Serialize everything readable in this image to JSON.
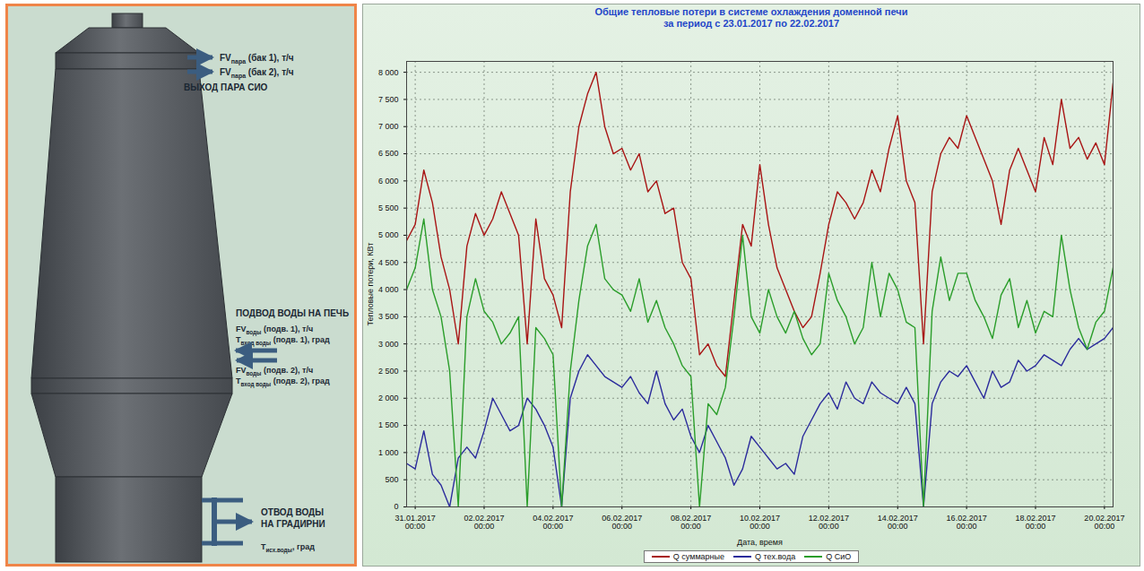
{
  "diagram": {
    "steam_outputs": [
      {
        "symbol": "FV",
        "subscript": "пара",
        "text": " (бак 1), т/ч"
      },
      {
        "symbol": "FV",
        "subscript": "пара",
        "text": " (бак 2), т/ч"
      }
    ],
    "steam_title": "ВЫХОД ПАРА СИО",
    "water_supply_title": "ПОДВОД ВОДЫ НА ПЕЧЬ",
    "water_supply": [
      {
        "symbol": "FV",
        "subscript": "воды",
        "text": " (подв. 1), т/ч"
      },
      {
        "symbol": "T",
        "subscript": "вход воды",
        "text": " (подв. 1), град"
      },
      {
        "symbol": "FV",
        "subscript": "воды",
        "text": " (подв. 2), т/ч"
      },
      {
        "symbol": "T",
        "subscript": "вход воды",
        "text": " (подв. 2), град"
      }
    ],
    "drain_title": [
      "ОТВОД ВОДЫ",
      "НА ГРАДИРНИ"
    ],
    "drain_temp": {
      "symbol": "T",
      "subscript": "исх.воды",
      "text": ", град"
    }
  },
  "chart_data": {
    "type": "line",
    "title": "Общие тепловые потери в системе охлаждения доменной печи",
    "subtitle": "за период с 23.01.2017 по 22.02.2017",
    "xlabel": "Дата, время",
    "ylabel": "Тепловые потери, КВт",
    "grid": true,
    "legend": "bottom",
    "xlim": [
      "2017-01-30T18:00",
      "2017-02-20T06:00"
    ],
    "xticks": [
      {
        "value": "2017-01-31T00:00",
        "label": "31.01.2017\n00:00"
      },
      {
        "value": "2017-02-02T00:00",
        "label": "02.02.2017\n00:00"
      },
      {
        "value": "2017-02-04T00:00",
        "label": "04.02.2017\n00:00"
      },
      {
        "value": "2017-02-06T00:00",
        "label": "06.02.2017\n00:00"
      },
      {
        "value": "2017-02-08T00:00",
        "label": "08.02.2017\n00:00"
      },
      {
        "value": "2017-02-10T00:00",
        "label": "10.02.2017\n00:00"
      },
      {
        "value": "2017-02-12T00:00",
        "label": "12.02.2017\n00:00"
      },
      {
        "value": "2017-02-14T00:00",
        "label": "14.02.2017\n00:00"
      },
      {
        "value": "2017-02-16T00:00",
        "label": "16.02.2017\n00:00"
      },
      {
        "value": "2017-02-18T00:00",
        "label": "18.02.2017\n00:00"
      },
      {
        "value": "2017-02-20T00:00",
        "label": "20.02.2017\n00:00"
      }
    ],
    "ylim": [
      0,
      8200
    ],
    "yticks": [
      0,
      500,
      {
        "value": 1000,
        "label": "1 000"
      },
      {
        "value": 1500,
        "label": "1 500"
      },
      {
        "value": 2000,
        "label": "2 000"
      },
      {
        "value": 2500,
        "label": "2 500"
      },
      {
        "value": 3000,
        "label": "3 000"
      },
      {
        "value": 3500,
        "label": "3 500"
      },
      {
        "value": 4000,
        "label": "4 000"
      },
      {
        "value": 4500,
        "label": "4 500"
      },
      {
        "value": 5000,
        "label": "5 000"
      },
      {
        "value": 5500,
        "label": "5 500"
      },
      {
        "value": 6000,
        "label": "6 000"
      },
      {
        "value": 6500,
        "label": "6 500"
      },
      {
        "value": 7000,
        "label": "7 000"
      },
      {
        "value": 7500,
        "label": "7 500"
      },
      {
        "value": 8000,
        "label": "8 000"
      }
    ],
    "x": [
      "2017-01-30T18:00",
      "2017-01-31T00:00",
      "2017-01-31T06:00",
      "2017-01-31T12:00",
      "2017-01-31T18:00",
      "2017-02-01T00:00",
      "2017-02-01T06:00",
      "2017-02-01T12:00",
      "2017-02-01T18:00",
      "2017-02-02T00:00",
      "2017-02-02T06:00",
      "2017-02-02T12:00",
      "2017-02-02T18:00",
      "2017-02-03T00:00",
      "2017-02-03T06:00",
      "2017-02-03T12:00",
      "2017-02-03T18:00",
      "2017-02-04T00:00",
      "2017-02-04T06:00",
      "2017-02-04T12:00",
      "2017-02-04T18:00",
      "2017-02-05T00:00",
      "2017-02-05T06:00",
      "2017-02-05T12:00",
      "2017-02-05T18:00",
      "2017-02-06T00:00",
      "2017-02-06T06:00",
      "2017-02-06T12:00",
      "2017-02-06T18:00",
      "2017-02-07T00:00",
      "2017-02-07T06:00",
      "2017-02-07T12:00",
      "2017-02-07T18:00",
      "2017-02-08T00:00",
      "2017-02-08T06:00",
      "2017-02-08T12:00",
      "2017-02-08T18:00",
      "2017-02-09T00:00",
      "2017-02-09T06:00",
      "2017-02-09T12:00",
      "2017-02-09T18:00",
      "2017-02-10T00:00",
      "2017-02-10T06:00",
      "2017-02-10T12:00",
      "2017-02-10T18:00",
      "2017-02-11T00:00",
      "2017-02-11T06:00",
      "2017-02-11T12:00",
      "2017-02-11T18:00",
      "2017-02-12T00:00",
      "2017-02-12T06:00",
      "2017-02-12T12:00",
      "2017-02-12T18:00",
      "2017-02-13T00:00",
      "2017-02-13T06:00",
      "2017-02-13T12:00",
      "2017-02-13T18:00",
      "2017-02-14T00:00",
      "2017-02-14T06:00",
      "2017-02-14T12:00",
      "2017-02-14T18:00",
      "2017-02-15T00:00",
      "2017-02-15T06:00",
      "2017-02-15T12:00",
      "2017-02-15T18:00",
      "2017-02-16T00:00",
      "2017-02-16T06:00",
      "2017-02-16T12:00",
      "2017-02-16T18:00",
      "2017-02-17T00:00",
      "2017-02-17T06:00",
      "2017-02-17T12:00",
      "2017-02-17T18:00",
      "2017-02-18T00:00",
      "2017-02-18T06:00",
      "2017-02-18T12:00",
      "2017-02-18T18:00",
      "2017-02-19T00:00",
      "2017-02-19T06:00",
      "2017-02-19T12:00",
      "2017-02-19T18:00",
      "2017-02-20T00:00",
      "2017-02-20T06:00"
    ],
    "series": [
      {
        "name": "Q суммарные",
        "color": "#a81414",
        "values": [
          4900,
          5200,
          6200,
          5600,
          4600,
          4000,
          3000,
          4800,
          5400,
          5000,
          5300,
          5800,
          5400,
          5000,
          3000,
          5300,
          4200,
          3900,
          3300,
          5800,
          7000,
          7600,
          8000,
          7000,
          6500,
          6600,
          6200,
          6500,
          5800,
          6000,
          5400,
          5500,
          4500,
          4200,
          2800,
          3000,
          2600,
          2400,
          3800,
          5200,
          4800,
          6300,
          5200,
          4400,
          4000,
          3600,
          3300,
          3500,
          4300,
          5200,
          5800,
          5600,
          5300,
          5600,
          6200,
          5800,
          6600,
          7200,
          6000,
          5600,
          3000,
          5800,
          6500,
          6800,
          6600,
          7200,
          6800,
          6400,
          6000,
          5200,
          6200,
          6600,
          6200,
          5800,
          6800,
          6300,
          7500,
          6600,
          6800,
          6400,
          6700,
          6300,
          7800
        ]
      },
      {
        "name": "Q тех.вода",
        "color": "#2b2b9c",
        "values": [
          800,
          700,
          1400,
          600,
          400,
          0,
          900,
          1100,
          900,
          1400,
          2000,
          1700,
          1400,
          1500,
          2000,
          1800,
          1500,
          1100,
          0,
          2000,
          2500,
          2800,
          2600,
          2400,
          2300,
          2200,
          2400,
          2100,
          1900,
          2500,
          1900,
          1600,
          1800,
          1300,
          1000,
          1500,
          1200,
          900,
          400,
          700,
          1300,
          1100,
          900,
          700,
          800,
          600,
          1300,
          1600,
          1900,
          2100,
          1800,
          2300,
          2000,
          1900,
          2300,
          2100,
          2000,
          1900,
          2200,
          1900,
          0,
          1900,
          2300,
          2500,
          2400,
          2600,
          2300,
          2000,
          2500,
          2200,
          2300,
          2700,
          2500,
          2600,
          2800,
          2700,
          2600,
          2900,
          3100,
          2900,
          3000,
          3100,
          3300
        ]
      },
      {
        "name": "Q СиО",
        "color": "#2a9d2a",
        "values": [
          4000,
          4400,
          5300,
          4000,
          3500,
          2500,
          0,
          3500,
          4200,
          3600,
          3400,
          3000,
          3200,
          3500,
          0,
          3300,
          3100,
          2800,
          0,
          2500,
          3800,
          4800,
          5200,
          4200,
          4000,
          3900,
          3600,
          4200,
          3400,
          3800,
          3300,
          3000,
          2600,
          2400,
          0,
          1900,
          1700,
          2200,
          3500,
          5000,
          3500,
          3200,
          4000,
          3500,
          3200,
          3600,
          3100,
          2800,
          3000,
          4300,
          3800,
          3500,
          3000,
          3300,
          4500,
          3500,
          4300,
          4000,
          3400,
          3300,
          0,
          3600,
          4600,
          3800,
          4300,
          4300,
          3800,
          3500,
          3100,
          3900,
          4200,
          3300,
          3800,
          3200,
          3600,
          3500,
          5000,
          4000,
          3300,
          2900,
          3400,
          3600,
          4400
        ]
      }
    ]
  }
}
